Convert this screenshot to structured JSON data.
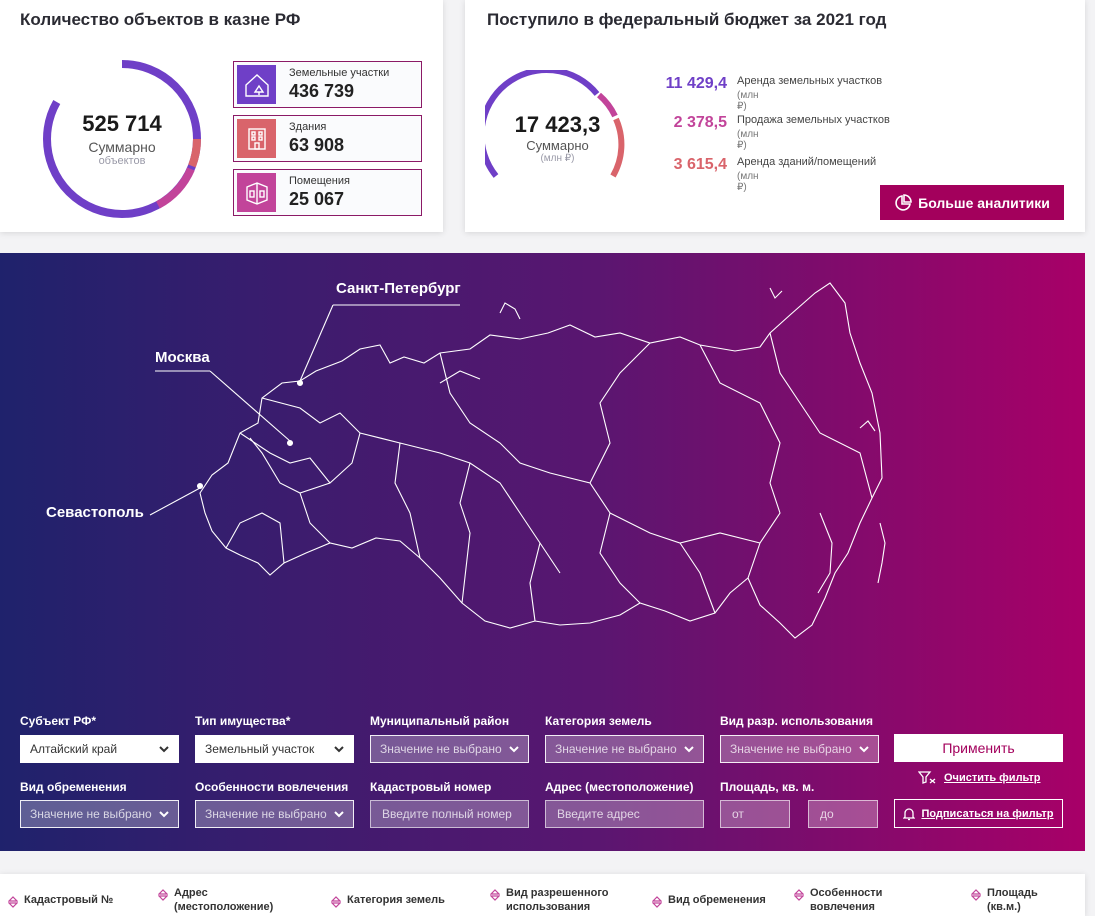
{
  "objects_card": {
    "title": "Количество объектов в казне РФ",
    "total": "525 714",
    "total_label": "Суммарно",
    "total_sub": "объектов",
    "items": [
      {
        "label": "Земельные участки",
        "value": "436 739",
        "icon": "land-plot-icon",
        "color": "#6f3fc7"
      },
      {
        "label": "Здания",
        "value": "63 908",
        "icon": "building-icon",
        "color": "#d9646b"
      },
      {
        "label": "Помещения",
        "value": "25 067",
        "icon": "room-icon",
        "color": "#c2449a"
      }
    ]
  },
  "budget_card": {
    "title": "Поступило в федеральный бюджет за 2021 год",
    "total": "17 423,3",
    "total_label": "Суммарно",
    "total_unit": "(млн ₽)",
    "items": [
      {
        "value": "11 429,4",
        "label": "Аренда земельных участков",
        "unit": "(млн ₽)",
        "color": "#6f3fc7"
      },
      {
        "value": "2 378,5",
        "label": "Продажа земельных участков",
        "unit": "(млн ₽)",
        "color": "#c2449a"
      },
      {
        "value": "3 615,4",
        "label": "Аренда зданий/помещений",
        "unit": "(млн ₽)",
        "color": "#d9646b"
      }
    ],
    "more_button": "Больше аналитики"
  },
  "map": {
    "cities": {
      "spb": "Санкт-Петербург",
      "moscow": "Москва",
      "sevastopol": "Севастополь"
    }
  },
  "filters": {
    "subject": {
      "label": "Субъект РФ",
      "required": "*",
      "value": "Алтайский край"
    },
    "property_type": {
      "label": "Тип имущества",
      "required": "*",
      "value": "Земельный участок"
    },
    "municipal": {
      "label": "Муниципальный район",
      "value": "Значение не выбрано"
    },
    "land_category": {
      "label": "Категория земель",
      "value": "Значение не выбрано"
    },
    "permitted_use": {
      "label": "Вид разр. использования",
      "value": "Значение не выбрано"
    },
    "encumbrance": {
      "label": "Вид обременения",
      "value": "Значение не выбрано"
    },
    "involvement": {
      "label": "Особенности вовлечения",
      "value": "Значение не выбрано"
    },
    "cadastral": {
      "label": "Кадастровый номер",
      "placeholder": "Введите полный номер"
    },
    "address": {
      "label": "Адрес (местоположение)",
      "placeholder": "Введите адрес"
    },
    "area": {
      "label": "Площадь, кв. м.",
      "from": "от",
      "to": "до"
    },
    "apply_button": "Применить",
    "clear_link": "Очистить фильтр",
    "subscribe_button": "Подписаться на фильтр"
  },
  "table": {
    "columns": [
      {
        "line1": "Кадастровый №",
        "line2": ""
      },
      {
        "line1": "Адрес",
        "line2": "(местоположение)"
      },
      {
        "line1": "Категория земель",
        "line2": ""
      },
      {
        "line1": "Вид разрешенного",
        "line2": "использования"
      },
      {
        "line1": "Вид обременения",
        "line2": ""
      },
      {
        "line1": "Особенности",
        "line2": "вовлечения"
      },
      {
        "line1": "Площадь",
        "line2": "(кв.м.)"
      }
    ]
  }
}
